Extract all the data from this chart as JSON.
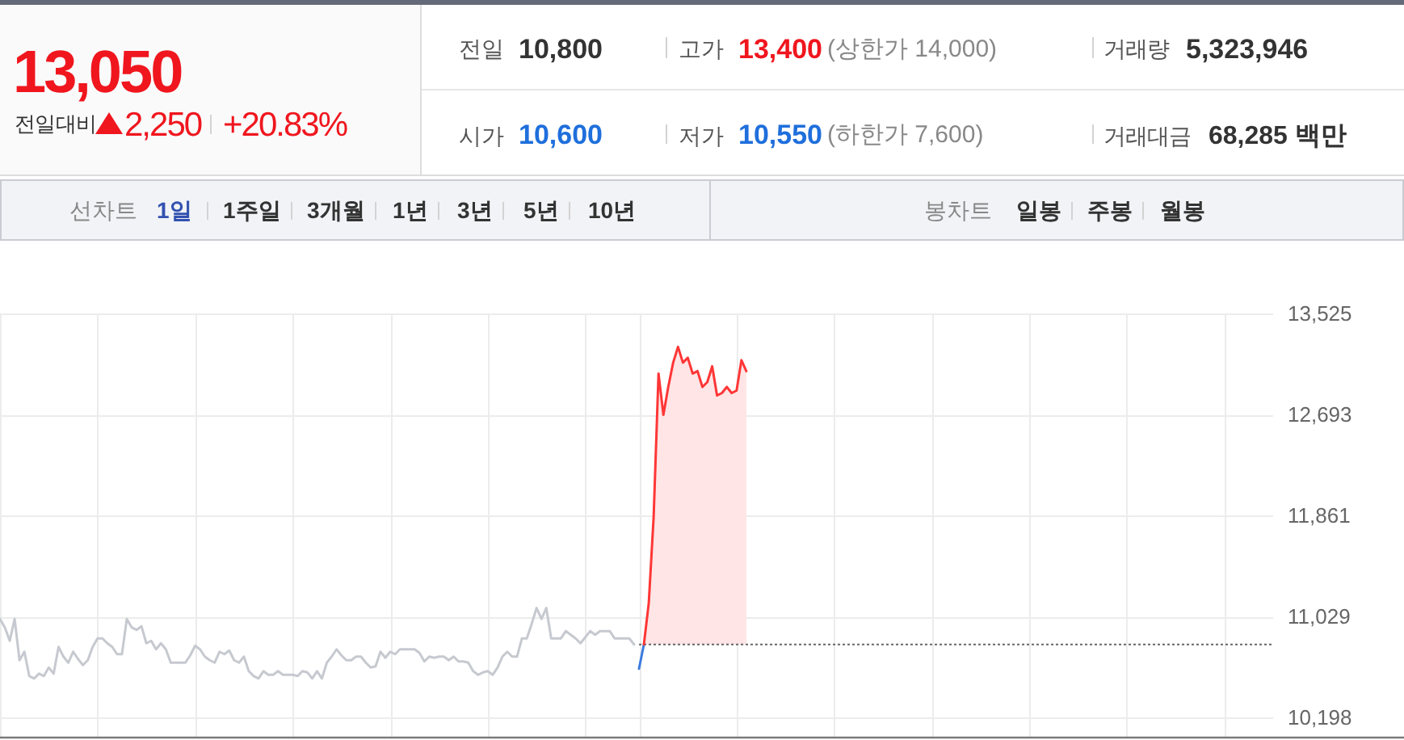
{
  "chart_data": [
    {
      "type": "other",
      "annotations": [
        "13,050",
        "전일대비",
        "2,250",
        "+20.83%",
        "전일",
        "10,800",
        "고가",
        "13,400",
        "(상한가 14,000)",
        "거래량",
        "5,323,946",
        "시가",
        "10,600",
        "저가",
        "10,550",
        "(하한가 7,600)",
        "거래대금",
        "68,285 백만"
      ]
    },
    {
      "type": "other",
      "annotations": [
        "선차트",
        "1일",
        "1주일",
        "3개월",
        "1년",
        "3년",
        "5년",
        "10년",
        "봉차트",
        "일봉",
        "주봉",
        "월봉"
      ]
    },
    {
      "type": "line",
      "categories": [
        null,
        null,
        null,
        null,
        null,
        null,
        null,
        null,
        null,
        null,
        null,
        null,
        null,
        null,
        null,
        null,
        null,
        null,
        null,
        null,
        null,
        null,
        null,
        null,
        null,
        null,
        null,
        null,
        null,
        null,
        null,
        null,
        null,
        null,
        null,
        null,
        null,
        null,
        null,
        null,
        null,
        null,
        null,
        null,
        null,
        null,
        null,
        null,
        null,
        null,
        null,
        null,
        null,
        null,
        null,
        null,
        null,
        null,
        null,
        null,
        null,
        null,
        null,
        null,
        null,
        null,
        null,
        null,
        null,
        null,
        null,
        null,
        null,
        null,
        null,
        null,
        null,
        null,
        null,
        null,
        null,
        null,
        null,
        null,
        null,
        null,
        null,
        null,
        null,
        null,
        null,
        null,
        null,
        null,
        null,
        null,
        null,
        null,
        null,
        null,
        null,
        null,
        null,
        null,
        null,
        null,
        null,
        null,
        null,
        null,
        null,
        null,
        null,
        null,
        null,
        null,
        null,
        null,
        null,
        null,
        null,
        null,
        null,
        null,
        null,
        null,
        null,
        null,
        null,
        null,
        null,
        null,
        null,
        null,
        null,
        null,
        null,
        null,
        null,
        null,
        null,
        null,
        null,
        null,
        null,
        null,
        null,
        null,
        null,
        null,
        null,
        null,
        null,
        null,
        null,
        null,
        null,
        null,
        null,
        null,
        null,
        null,
        null,
        null,
        null,
        null,
        null,
        null,
        null,
        null,
        null,
        null,
        null,
        null,
        null,
        null,
        null,
        null,
        null,
        null,
        null,
        null,
        null,
        null,
        null,
        null,
        null,
        null,
        null,
        null,
        null,
        null,
        null,
        null,
        null,
        null,
        null,
        null,
        null,
        null,
        null,
        null,
        null,
        null,
        null,
        null,
        null,
        null,
        null,
        null,
        null,
        null,
        null,
        null,
        null,
        null,
        null,
        null,
        null,
        null,
        null,
        null,
        null,
        null,
        null,
        null,
        null,
        null,
        null,
        null,
        null,
        null,
        null,
        null,
        null,
        null,
        null,
        null,
        null,
        null,
        null,
        null,
        null,
        null,
        null,
        null,
        null,
        null,
        null,
        null,
        null,
        null,
        null,
        null,
        null,
        null,
        null,
        null,
        null,
        null,
        null,
        null
      ],
      "series": [
        {
          "color": "#c6c9cf",
          "values": [
            11010,
            10940,
            10830,
            11010,
            10670,
            10740,
            10540,
            10520,
            10560,
            10540,
            10610,
            10560,
            10780,
            10700,
            10650,
            10740,
            10680,
            10630,
            10670,
            10780,
            10850,
            10850,
            10810,
            10780,
            10720,
            10720,
            11010,
            10940,
            10920,
            10950,
            10810,
            10830,
            10760,
            10810,
            10760,
            10650,
            10650,
            10650,
            10650,
            10710,
            10790,
            10760,
            10700,
            10670,
            10650,
            10740,
            10720,
            10750,
            10670,
            10650,
            10700,
            10580,
            10540,
            10520,
            10580,
            10550,
            10550,
            10580,
            10550,
            10550,
            10550,
            10540,
            10580,
            10570,
            10520,
            10580,
            10520,
            10650,
            10700,
            10760,
            10710,
            10670,
            10670,
            10700,
            10700,
            10650,
            10610,
            10620,
            10740,
            10690,
            10740,
            10720,
            10760,
            10760,
            10760,
            10760,
            10730,
            10660,
            10700,
            10690,
            10700,
            10700,
            10670,
            10700,
            10660,
            10660,
            10650,
            10580,
            10550,
            10570,
            10580,
            10550,
            10610,
            10700,
            10740,
            10700,
            10700,
            10850,
            10850,
            10970,
            11100,
            11010,
            11100,
            10850,
            10850,
            10850,
            10910,
            10880,
            10850,
            10810,
            10860,
            10910,
            10880,
            10910,
            10910,
            10910,
            10850,
            10850,
            10850,
            10850,
            10800,
            null,
            null,
            null,
            null,
            null,
            null,
            null,
            null,
            null,
            null,
            null,
            null,
            null,
            null,
            null,
            null,
            null,
            null,
            null,
            null,
            null,
            null,
            null,
            null,
            null,
            null,
            null,
            null,
            null,
            null,
            null,
            null,
            null,
            null,
            null,
            null,
            null,
            null,
            null,
            null,
            null,
            null,
            null,
            null,
            null,
            null,
            null,
            null,
            null,
            null,
            null,
            null,
            null,
            null,
            null,
            null,
            null,
            null,
            null,
            null,
            null,
            null,
            null,
            null,
            null,
            null,
            null,
            null,
            null,
            null,
            null,
            null,
            null,
            null,
            null,
            null,
            null,
            null,
            null,
            null,
            null,
            null,
            null,
            null,
            null,
            null,
            null,
            null,
            null,
            null,
            null,
            null,
            null,
            null,
            null,
            null,
            null,
            null,
            null,
            null,
            null,
            null,
            null,
            null,
            null,
            null,
            null,
            null,
            null,
            null,
            null,
            null,
            null,
            null,
            null,
            null,
            null,
            null,
            null,
            null,
            null,
            null,
            null,
            null,
            null,
            null,
            null,
            null,
            null,
            null,
            null
          ]
        },
        {
          "color": "#3d7be0",
          "values": [
            null,
            null,
            null,
            null,
            null,
            null,
            null,
            null,
            null,
            null,
            null,
            null,
            null,
            null,
            null,
            null,
            null,
            null,
            null,
            null,
            null,
            null,
            null,
            null,
            null,
            null,
            null,
            null,
            null,
            null,
            null,
            null,
            null,
            null,
            null,
            null,
            null,
            null,
            null,
            null,
            null,
            null,
            null,
            null,
            null,
            null,
            null,
            null,
            null,
            null,
            null,
            null,
            null,
            null,
            null,
            null,
            null,
            null,
            null,
            null,
            null,
            null,
            null,
            null,
            null,
            null,
            null,
            null,
            null,
            null,
            null,
            null,
            null,
            null,
            null,
            null,
            null,
            null,
            null,
            null,
            null,
            null,
            null,
            null,
            null,
            null,
            null,
            null,
            null,
            null,
            null,
            null,
            null,
            null,
            null,
            null,
            null,
            null,
            null,
            null,
            null,
            null,
            null,
            null,
            null,
            null,
            null,
            null,
            null,
            null,
            null,
            null,
            null,
            null,
            null,
            null,
            null,
            null,
            null,
            null,
            null,
            null,
            null,
            null,
            null,
            null,
            null,
            null,
            null,
            null,
            null,
            10600,
            10800,
            null,
            null,
            null,
            null,
            null,
            null,
            null,
            null,
            null,
            null,
            null,
            null,
            null,
            null,
            null,
            null,
            null,
            null,
            null,
            null,
            null,
            null,
            null,
            null,
            null,
            null,
            null,
            null,
            null,
            null,
            null,
            null,
            null,
            null,
            null,
            null,
            null,
            null,
            null,
            null,
            null,
            null,
            null,
            null,
            null,
            null,
            null,
            null,
            null,
            null,
            null,
            null,
            null,
            null,
            null,
            null,
            null,
            null,
            null,
            null,
            null,
            null,
            null,
            null,
            null,
            null,
            null,
            null,
            null,
            null,
            null,
            null,
            null,
            null,
            null,
            null,
            null,
            null,
            null,
            null,
            null,
            null,
            null,
            null,
            null,
            null,
            null,
            null,
            null,
            null,
            null,
            null,
            null,
            null,
            null,
            null,
            null,
            null,
            null,
            null,
            null,
            null,
            null,
            null,
            null,
            null,
            null,
            null,
            null,
            null,
            null,
            null,
            null,
            null,
            null,
            null,
            null,
            null,
            null,
            null,
            null,
            null,
            null,
            null,
            null,
            null,
            null,
            null,
            null
          ]
        },
        {
          "type": "area",
          "color": "#ff3636",
          "values": [
            null,
            null,
            null,
            null,
            null,
            null,
            null,
            null,
            null,
            null,
            null,
            null,
            null,
            null,
            null,
            null,
            null,
            null,
            null,
            null,
            null,
            null,
            null,
            null,
            null,
            null,
            null,
            null,
            null,
            null,
            null,
            null,
            null,
            null,
            null,
            null,
            null,
            null,
            null,
            null,
            null,
            null,
            null,
            null,
            null,
            null,
            null,
            null,
            null,
            null,
            null,
            null,
            null,
            null,
            null,
            null,
            null,
            null,
            null,
            null,
            null,
            null,
            null,
            null,
            null,
            null,
            null,
            null,
            null,
            null,
            null,
            null,
            null,
            null,
            null,
            null,
            null,
            null,
            null,
            null,
            null,
            null,
            null,
            null,
            null,
            null,
            null,
            null,
            null,
            null,
            null,
            null,
            null,
            null,
            null,
            null,
            null,
            null,
            null,
            null,
            null,
            null,
            null,
            null,
            null,
            null,
            null,
            null,
            null,
            null,
            null,
            null,
            null,
            null,
            null,
            null,
            null,
            null,
            null,
            null,
            null,
            null,
            null,
            null,
            null,
            null,
            null,
            null,
            null,
            null,
            null,
            null,
            10800,
            11140,
            11850,
            13030,
            12690,
            12920,
            13120,
            13250,
            13120,
            13160,
            13030,
            13050,
            12920,
            12960,
            13090,
            12850,
            12870,
            12920,
            12870,
            12890,
            13140,
            13050,
            null,
            null,
            null,
            null,
            null,
            null,
            null,
            null,
            null,
            null,
            null,
            null,
            null,
            null,
            null,
            null,
            null,
            null,
            null,
            null,
            null,
            null,
            null,
            null,
            null,
            null,
            null,
            null,
            null,
            null,
            null,
            null,
            null,
            null,
            null,
            null,
            null,
            null,
            null,
            null,
            null,
            null,
            null,
            null,
            null,
            null,
            null,
            null,
            null,
            null,
            null,
            null,
            null,
            null,
            null,
            null,
            null,
            null,
            null,
            null,
            null,
            null,
            null,
            null,
            null,
            null,
            null,
            null,
            null,
            null,
            null,
            null,
            null,
            null,
            null,
            null,
            null,
            null,
            null,
            null,
            null,
            null,
            null,
            null,
            null,
            null,
            null,
            null,
            null,
            null,
            null,
            null,
            null,
            null,
            null,
            null,
            null,
            null,
            null,
            null,
            null,
            null,
            null,
            null,
            null,
            null,
            null,
            null
          ]
        }
      ],
      "ylim": [
        10040,
        13525
      ],
      "yticks": [
        {
          "value": 10198,
          "label": "10,198"
        },
        {
          "value": 11029,
          "label": "11,029"
        },
        {
          "value": 11861,
          "label": "11,861"
        },
        {
          "value": 12693,
          "label": "12,693"
        },
        {
          "value": 13525,
          "label": "13,525"
        }
      ],
      "tick_labels": "y",
      "grid": true,
      "ref_lines": [
        {
          "axis": "y",
          "value": 10800,
          "color": "#666666",
          "line_style": "dotted"
        }
      ]
    }
  ]
}
